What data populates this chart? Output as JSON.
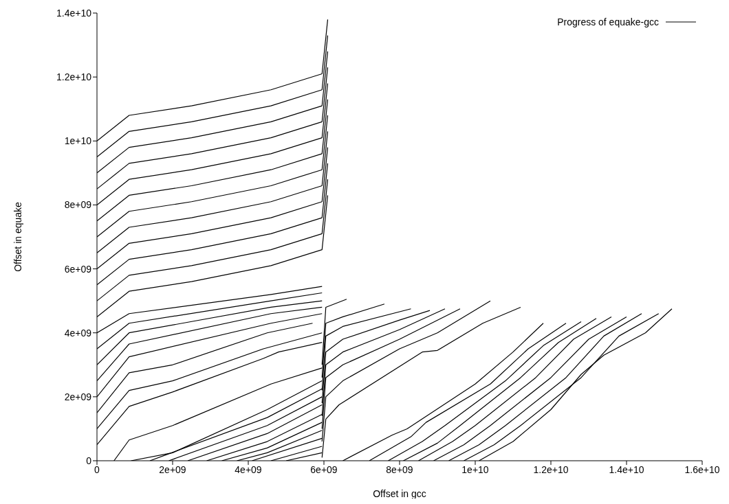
{
  "chart_data": {
    "type": "line",
    "xlabel": "Offset in gcc",
    "ylabel": "Offset in equake",
    "legend": "top right",
    "marker": "none",
    "line_style": "solid",
    "grid": false,
    "xlim": [
      0,
      16000000000.0
    ],
    "ylim": [
      0,
      14000000000.0
    ],
    "xticks": [
      0,
      {
        "value": 2000000000.0,
        "label": "2e+09"
      },
      {
        "value": 4000000000.0,
        "label": "4e+09"
      },
      {
        "value": 6000000000.0,
        "label": "6e+09"
      },
      {
        "value": 8000000000.0,
        "label": "8e+09"
      },
      {
        "value": 10000000000.0,
        "label": "1e+10"
      },
      {
        "value": 12000000000.0,
        "label": "1.2e+10"
      },
      {
        "value": 14000000000.0,
        "label": "1.4e+10"
      },
      {
        "value": 16000000000.0,
        "label": "1.6e+10"
      }
    ],
    "yticks": [
      0,
      {
        "value": 2000000000.0,
        "label": "2e+09"
      },
      {
        "value": 4000000000.0,
        "label": "4e+09"
      },
      {
        "value": 6000000000.0,
        "label": "6e+09"
      },
      {
        "value": 8000000000.0,
        "label": "8e+09"
      },
      {
        "value": 10000000000.0,
        "label": "1e+10"
      },
      {
        "value": 12000000000.0,
        "label": "1.2e+10"
      },
      {
        "value": 14000000000.0,
        "label": "1.4e+10"
      }
    ],
    "series": [
      {
        "name": "Progress of equake-gcc",
        "color": "#000000",
        "x": [
          0,
          850000000.0,
          2500000000.0,
          4600000000.0,
          5950000000.0,
          6100000000.0
        ],
        "values": [
          10000000000.0,
          10800000000.0,
          11100000000.0,
          11600000000.0,
          12100000000.0,
          13800000000.0
        ]
      },
      {
        "color": "#000000",
        "x": [
          0,
          850000000.0,
          2500000000.0,
          4600000000.0,
          5950000000.0,
          6100000000.0
        ],
        "values": [
          9500000000.0,
          10300000000.0,
          10600000000.0,
          11100000000.0,
          11600000000.0,
          13300000000.0
        ]
      },
      {
        "color": "#000000",
        "x": [
          0,
          850000000.0,
          2500000000.0,
          4600000000.0,
          5950000000.0,
          6100000000.0
        ],
        "values": [
          9000000000.0,
          9800000000.0,
          10100000000.0,
          10600000000.0,
          11100000000.0,
          12800000000.0
        ]
      },
      {
        "color": "#000000",
        "x": [
          0,
          850000000.0,
          2500000000.0,
          4600000000.0,
          5950000000.0,
          6100000000.0
        ],
        "values": [
          8500000000.0,
          9300000000.0,
          9600000000.0,
          10100000000.0,
          10600000000.0,
          12300000000.0
        ]
      },
      {
        "color": "#000000",
        "x": [
          0,
          850000000.0,
          2500000000.0,
          4600000000.0,
          5950000000.0,
          6100000000.0
        ],
        "values": [
          8000000000.0,
          8800000000.0,
          9100000000.0,
          9600000000.0,
          10100000000.0,
          11800000000.0
        ]
      },
      {
        "color": "#000000",
        "x": [
          0,
          850000000.0,
          2500000000.0,
          4600000000.0,
          5950000000.0,
          6100000000.0
        ],
        "values": [
          7500000000.0,
          8300000000.0,
          8600000000.0,
          9100000000.0,
          9600000000.0,
          11300000000.0
        ]
      },
      {
        "color": "#000000",
        "x": [
          0,
          850000000.0,
          2500000000.0,
          4600000000.0,
          5950000000.0,
          6100000000.0
        ],
        "values": [
          7000000000.0,
          7800000000.0,
          8100000000.0,
          8600000000.0,
          9100000000.0,
          10800000000.0
        ]
      },
      {
        "color": "#000000",
        "x": [
          0,
          850000000.0,
          2500000000.0,
          4600000000.0,
          5950000000.0,
          6100000000.0
        ],
        "values": [
          6500000000.0,
          7300000000.0,
          7600000000.0,
          8100000000.0,
          8600000000.0,
          10300000000.0
        ]
      },
      {
        "color": "#000000",
        "x": [
          0,
          850000000.0,
          2500000000.0,
          4600000000.0,
          5950000000.0,
          6100000000.0
        ],
        "values": [
          6000000000.0,
          6800000000.0,
          7100000000.0,
          7600000000.0,
          8100000000.0,
          9800000000.0
        ]
      },
      {
        "color": "#000000",
        "x": [
          0,
          850000000.0,
          2500000000.0,
          4600000000.0,
          5950000000.0,
          6100000000.0
        ],
        "values": [
          5500000000.0,
          6300000000.0,
          6600000000.0,
          7100000000.0,
          7600000000.0,
          9300000000.0
        ]
      },
      {
        "color": "#000000",
        "x": [
          0,
          850000000.0,
          2500000000.0,
          4600000000.0,
          5950000000.0,
          6100000000.0
        ],
        "values": [
          5000000000.0,
          5800000000.0,
          6100000000.0,
          6600000000.0,
          7100000000.0,
          8800000000.0
        ]
      },
      {
        "color": "#000000",
        "x": [
          0,
          850000000.0,
          2500000000.0,
          4600000000.0,
          5950000000.0,
          6100000000.0
        ],
        "values": [
          4500000000.0,
          5300000000.0,
          5600000000.0,
          6100000000.0,
          6600000000.0,
          8300000000.0
        ]
      },
      {
        "color": "#000000",
        "x": [
          0,
          850000000.0,
          4600000000.0,
          5950000000.0
        ],
        "values": [
          4000000000.0,
          4600000000.0,
          5200000000.0,
          5450000000.0
        ]
      },
      {
        "color": "#000000",
        "x": [
          0,
          850000000.0,
          4600000000.0,
          5950000000.0
        ],
        "values": [
          3500000000.0,
          4300000000.0,
          5000000000.0,
          5250000000.0
        ]
      },
      {
        "color": "#000000",
        "x": [
          0,
          850000000.0,
          4600000000.0,
          5950000000.0
        ],
        "values": [
          3000000000.0,
          4000000000.0,
          4800000000.0,
          5000000000.0
        ]
      },
      {
        "color": "#000000",
        "x": [
          0,
          850000000.0,
          4600000000.0,
          5950000000.0
        ],
        "values": [
          2500000000.0,
          3650000000.0,
          4600000000.0,
          4800000000.0
        ]
      },
      {
        "color": "#000000",
        "x": [
          0,
          850000000.0,
          4600000000.0,
          5950000000.0
        ],
        "values": [
          2000000000.0,
          3250000000.0,
          4300000000.0,
          4600000000.0
        ]
      },
      {
        "color": "#000000",
        "x": [
          0,
          850000000.0,
          2000000000.0,
          4500000000.0,
          5700000000.0
        ],
        "values": [
          1500000000.0,
          2750000000.0,
          3000000000.0,
          4000000000.0,
          4300000000.0
        ]
      },
      {
        "color": "#000000",
        "x": [
          0,
          850000000.0,
          2000000000.0,
          4400000000.0,
          5950000000.0
        ],
        "values": [
          1000000000.0,
          2200000000.0,
          2500000000.0,
          3500000000.0,
          4000000000.0
        ]
      },
      {
        "color": "#000000",
        "x": [
          0,
          850000000.0,
          2000000000.0,
          4400000000.0,
          4800000000.0,
          5950000000.0
        ],
        "values": [
          500000000.0,
          1700000000.0,
          2150000000.0,
          3200000000.0,
          3400000000.0,
          3700000000.0
        ]
      },
      {
        "color": "#000000",
        "x": [
          450000000.0,
          850000000.0,
          2000000000.0,
          4600000000.0,
          5950000000.0
        ],
        "values": [
          0,
          650000000.0,
          1100000000.0,
          2400000000.0,
          2900000000.0
        ]
      },
      {
        "color": "#000000",
        "x": [
          900000000.0,
          2000000000.0,
          4500000000.0,
          5950000000.0
        ],
        "values": [
          0,
          250000000.0,
          1600000000.0,
          2500000000.0
        ]
      },
      {
        "color": "#000000",
        "x": [
          1400000000.0,
          4500000000.0,
          5950000000.0
        ],
        "values": [
          0,
          1350000000.0,
          2250000000.0
        ]
      },
      {
        "color": "#000000",
        "x": [
          1900000000.0,
          4500000000.0,
          5950000000.0
        ],
        "values": [
          0,
          1100000000.0,
          2000000000.0
        ]
      },
      {
        "color": "#000000",
        "x": [
          2400000000.0,
          4500000000.0,
          5950000000.0
        ],
        "values": [
          0,
          850000000.0,
          1750000000.0
        ]
      },
      {
        "color": "#000000",
        "x": [
          2900000000.0,
          4500000000.0,
          5950000000.0
        ],
        "values": [
          0,
          600000000.0,
          1450000000.0
        ]
      },
      {
        "color": "#000000",
        "x": [
          3300000000.0,
          4500000000.0,
          5950000000.0
        ],
        "values": [
          0,
          400000000.0,
          1200000000.0
        ]
      },
      {
        "color": "#000000",
        "x": [
          3700000000.0,
          4500000000.0,
          5950000000.0
        ],
        "values": [
          0,
          250000000.0,
          950000000.0
        ]
      },
      {
        "color": "#000000",
        "x": [
          4100000000.0,
          5950000000.0
        ],
        "values": [
          0,
          700000000.0
        ]
      },
      {
        "color": "#000000",
        "x": [
          4600000000.0,
          5950000000.0
        ],
        "values": [
          0,
          450000000.0
        ]
      },
      {
        "color": "#000000",
        "x": [
          5000000000.0,
          5950000000.0
        ],
        "values": [
          0,
          250000000.0
        ]
      },
      {
        "color": "#000000",
        "x": [
          5950000000.0,
          6050000000.0,
          6400000000.0,
          8600000000.0,
          9000000000.0,
          10200000000.0,
          11200000000.0
        ],
        "values": [
          100000000.0,
          1300000000.0,
          1750000000.0,
          3400000000.0,
          3450000000.0,
          4300000000.0,
          4800000000.0
        ]
      },
      {
        "color": "#000000",
        "x": [
          5950000000.0,
          6050000000.0,
          6500000000.0,
          8000000000.0,
          9000000000.0,
          10400000000.0
        ],
        "values": [
          600000000.0,
          2000000000.0,
          2500000000.0,
          3500000000.0,
          4000000000.0,
          5000000000.0
        ]
      },
      {
        "color": "#000000",
        "x": [
          5950000000.0,
          6050000000.0,
          6500000000.0,
          8000000000.0,
          9600000000.0
        ],
        "values": [
          1000000000.0,
          2600000000.0,
          3000000000.0,
          3800000000.0,
          4750000000.0
        ]
      },
      {
        "color": "#000000",
        "x": [
          5950000000.0,
          6050000000.0,
          6500000000.0,
          8000000000.0,
          9200000000.0
        ],
        "values": [
          1400000000.0,
          3000000000.0,
          3400000000.0,
          4100000000.0,
          4750000000.0
        ]
      },
      {
        "color": "#000000",
        "x": [
          5950000000.0,
          6050000000.0,
          6500000000.0,
          8000000000.0,
          8800000000.0
        ],
        "values": [
          1800000000.0,
          3400000000.0,
          3800000000.0,
          4400000000.0,
          4700000000.0
        ]
      },
      {
        "color": "#000000",
        "x": [
          5950000000.0,
          6050000000.0,
          6500000000.0,
          8300000000.0
        ],
        "values": [
          2200000000.0,
          3900000000.0,
          4200000000.0,
          4750000000.0
        ]
      },
      {
        "color": "#000000",
        "x": [
          5950000000.0,
          6050000000.0,
          6500000000.0,
          7600000000.0
        ],
        "values": [
          2600000000.0,
          4300000000.0,
          4500000000.0,
          4900000000.0
        ]
      },
      {
        "color": "#000000",
        "x": [
          5950000000.0,
          6050000000.0,
          6600000000.0
        ],
        "values": [
          3000000000.0,
          4800000000.0,
          5050000000.0
        ]
      },
      {
        "color": "#000000",
        "x": [
          6500000000.0,
          7800000000.0,
          8200000000.0,
          10000000000.0,
          11000000000.0,
          11800000000.0
        ],
        "values": [
          0,
          800000000.0,
          1000000000.0,
          2400000000.0,
          3400000000.0,
          4300000000.0
        ]
      },
      {
        "color": "#000000",
        "x": [
          7200000000.0,
          8300000000.0,
          8700000000.0,
          10400000000.0,
          11400000000.0,
          12400000000.0
        ],
        "values": [
          0,
          750000000.0,
          1200000000.0,
          2400000000.0,
          3500000000.0,
          4300000000.0
        ]
      },
      {
        "color": "#000000",
        "x": [
          7700000000.0,
          8600000000.0,
          9200000000.0,
          10800000000.0,
          11800000000.0,
          12800000000.0
        ],
        "values": [
          0,
          600000000.0,
          1100000000.0,
          2500000000.0,
          3600000000.0,
          4350000000.0
        ]
      },
      {
        "color": "#000000",
        "x": [
          8100000000.0,
          9000000000.0,
          9600000000.0,
          11200000000.0,
          12200000000.0,
          13200000000.0
        ],
        "values": [
          0,
          550000000.0,
          1100000000.0,
          2600000000.0,
          3700000000.0,
          4450000000.0
        ]
      },
      {
        "color": "#000000",
        "x": [
          8500000000.0,
          9400000000.0,
          10000000000.0,
          11600000000.0,
          12600000000.0,
          13600000000.0
        ],
        "values": [
          0,
          600000000.0,
          1100000000.0,
          2600000000.0,
          3800000000.0,
          4500000000.0
        ]
      },
      {
        "color": "#000000",
        "x": [
          8900000000.0,
          9700000000.0,
          10400000000.0,
          12000000000.0,
          13000000000.0,
          14000000000.0
        ],
        "values": [
          0,
          500000000.0,
          1100000000.0,
          2600000000.0,
          3800000000.0,
          4500000000.0
        ]
      },
      {
        "color": "#000000",
        "x": [
          9300000000.0,
          10100000000.0,
          10800000000.0,
          12400000000.0,
          13400000000.0,
          14400000000.0
        ],
        "values": [
          0,
          500000000.0,
          1100000000.0,
          2600000000.0,
          3900000000.0,
          4600000000.0
        ]
      },
      {
        "color": "#000000",
        "x": [
          9700000000.0,
          10500000000.0,
          11200000000.0,
          12800000000.0,
          13800000000.0,
          14850000000.0
        ],
        "values": [
          0,
          500000000.0,
          1100000000.0,
          2600000000.0,
          3900000000.0,
          4600000000.0
        ]
      },
      {
        "color": "#000000",
        "x": [
          10100000000.0,
          11000000000.0,
          12000000000.0,
          12800000000.0,
          13400000000.0,
          14500000000.0,
          15200000000.0
        ],
        "values": [
          0,
          600000000.0,
          1600000000.0,
          2700000000.0,
          3300000000.0,
          4000000000.0,
          4750000000.0
        ]
      }
    ]
  }
}
